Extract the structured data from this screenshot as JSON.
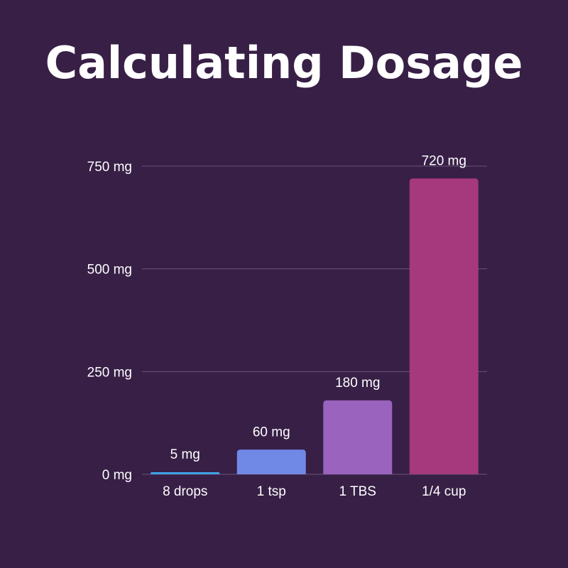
{
  "chart_data": {
    "type": "bar",
    "title": "Calculating Dosage",
    "categories": [
      "8 drops",
      "1 tsp",
      "1 TBS",
      "1/4 cup"
    ],
    "values": [
      5,
      60,
      180,
      720
    ],
    "data_labels": [
      "5 mg",
      "60 mg",
      "180 mg",
      "720 mg"
    ],
    "y_ticks": [
      {
        "value": 0,
        "label": "0 mg"
      },
      {
        "value": 250,
        "label": "250 mg"
      },
      {
        "value": 500,
        "label": "500 mg"
      },
      {
        "value": 750,
        "label": "750 mg"
      }
    ],
    "ylim": [
      0,
      750
    ],
    "grid": true,
    "xlabel": "",
    "ylabel": "",
    "colors": [
      "#3fa2e6",
      "#7089e6",
      "#9a63bd",
      "#a6387e"
    ],
    "background": "#371f46"
  }
}
